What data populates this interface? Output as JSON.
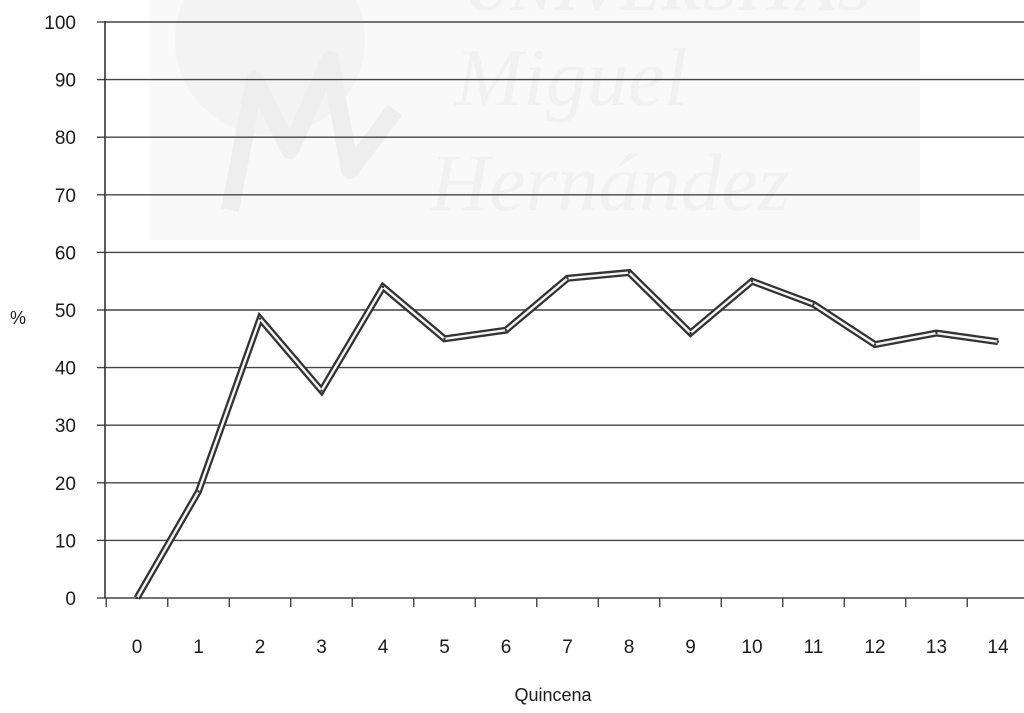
{
  "watermark": {
    "line1": "UNIVERSITAS",
    "line2": "Miguel",
    "line3": "Hernández"
  },
  "chart_data": {
    "type": "line",
    "xlabel": "Quincena",
    "ylabel": "%",
    "ylim": [
      0,
      100
    ],
    "y_ticks": [
      0,
      10,
      20,
      30,
      40,
      50,
      60,
      70,
      80,
      90,
      100
    ],
    "x": [
      0,
      1,
      2,
      3,
      4,
      5,
      6,
      7,
      8,
      9,
      10,
      11,
      12,
      13,
      14
    ],
    "values": [
      0,
      18.5,
      48.5,
      36,
      54,
      45,
      46.5,
      55.5,
      56.5,
      46,
      55,
      51,
      44,
      46,
      44.5
    ],
    "grid": "horizontal",
    "line_color": "#333333"
  }
}
